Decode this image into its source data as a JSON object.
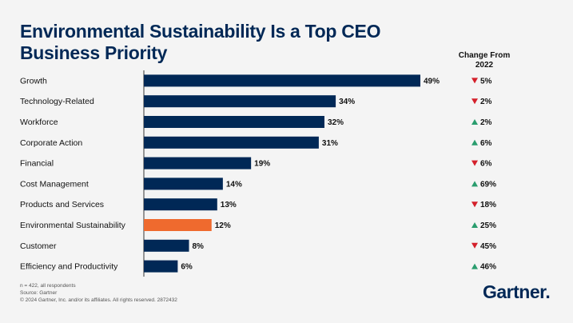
{
  "title": "Environmental Sustainability Is a Top CEO Business Priority",
  "change_header": "Change From 2022",
  "footnotes": [
    "n = 422, all respondents",
    "Source: Gartner",
    "© 2024 Gartner, Inc. and/or its affiliates. All rights reserved. 2872432"
  ],
  "logo_text": "Gartner.",
  "colors": {
    "bar": "#002856",
    "highlight": "#ef6a2e",
    "up": "#2a9d6e",
    "down": "#d4202b",
    "axis": "#333333"
  },
  "chart_data": {
    "type": "bar",
    "orientation": "horizontal",
    "title": "Environmental Sustainability Is a Top CEO Business Priority",
    "xlabel": "",
    "ylabel": "",
    "xlim": [
      0,
      50
    ],
    "highlight_category": "Environmental Sustainability",
    "categories": [
      "Growth",
      "Technology-Related",
      "Workforce",
      "Corporate Action",
      "Financial",
      "Cost Management",
      "Products and Services",
      "Environmental Sustainability",
      "Customer",
      "Efficiency and Productivity"
    ],
    "values": [
      49,
      34,
      32,
      31,
      19,
      14,
      13,
      12,
      8,
      6
    ],
    "value_labels": [
      "49%",
      "34%",
      "32%",
      "31%",
      "19%",
      "14%",
      "13%",
      "12%",
      "8%",
      "6%"
    ],
    "change_from_2022": [
      {
        "direction": "down",
        "label": "5%"
      },
      {
        "direction": "down",
        "label": "2%"
      },
      {
        "direction": "up",
        "label": "2%"
      },
      {
        "direction": "up",
        "label": "6%"
      },
      {
        "direction": "down",
        "label": "6%"
      },
      {
        "direction": "up",
        "label": "69%"
      },
      {
        "direction": "down",
        "label": "18%"
      },
      {
        "direction": "up",
        "label": "25%"
      },
      {
        "direction": "down",
        "label": "45%"
      },
      {
        "direction": "up",
        "label": "46%"
      }
    ]
  }
}
